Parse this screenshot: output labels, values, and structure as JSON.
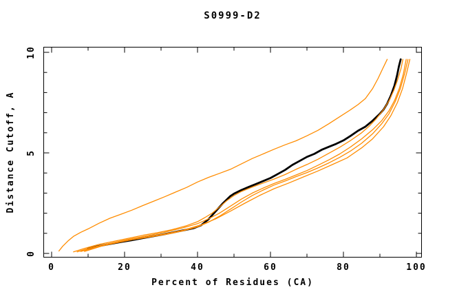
{
  "title": "S0999-D2",
  "chart_data": {
    "type": "line",
    "title": "S0999-D2",
    "xlabel": "Percent of Residues (CA)",
    "ylabel": "Distance Cutoff, A",
    "xlim": [
      0,
      100
    ],
    "ylim": [
      0,
      10
    ],
    "x_major_ticks": [
      0,
      20,
      40,
      60,
      80,
      100
    ],
    "x_minor_step": 10,
    "y_major_ticks": [
      0,
      5,
      10
    ],
    "y_minor_step": 1,
    "grid": false,
    "legend_position": "none",
    "colors": {
      "model_line": "#000000",
      "reference_lines": "#ff8c00",
      "background": "#ffffff"
    },
    "series": [
      {
        "name": "black-model",
        "color": "#000000",
        "width": 2.8,
        "points": [
          [
            10,
            0.25
          ],
          [
            13,
            0.37
          ],
          [
            16,
            0.47
          ],
          [
            19,
            0.57
          ],
          [
            22,
            0.66
          ],
          [
            25,
            0.76
          ],
          [
            28,
            0.86
          ],
          [
            31,
            0.96
          ],
          [
            34,
            1.07
          ],
          [
            37,
            1.18
          ],
          [
            39,
            1.26
          ],
          [
            41,
            1.4
          ],
          [
            43,
            1.7
          ],
          [
            45,
            2.1
          ],
          [
            47,
            2.5
          ],
          [
            49,
            2.85
          ],
          [
            50,
            2.97
          ],
          [
            52,
            3.15
          ],
          [
            54,
            3.3
          ],
          [
            56,
            3.45
          ],
          [
            58,
            3.6
          ],
          [
            60,
            3.75
          ],
          [
            62,
            3.95
          ],
          [
            64,
            4.15
          ],
          [
            66,
            4.4
          ],
          [
            68,
            4.6
          ],
          [
            70,
            4.8
          ],
          [
            72,
            4.95
          ],
          [
            74,
            5.15
          ],
          [
            76,
            5.3
          ],
          [
            78,
            5.45
          ],
          [
            80,
            5.62
          ],
          [
            82,
            5.85
          ],
          [
            84,
            6.1
          ],
          [
            86,
            6.3
          ],
          [
            88,
            6.6
          ],
          [
            90,
            6.95
          ],
          [
            91,
            7.15
          ],
          [
            92,
            7.45
          ],
          [
            93,
            7.85
          ],
          [
            94,
            8.35
          ],
          [
            94.7,
            8.85
          ],
          [
            95.2,
            9.3
          ],
          [
            95.7,
            9.65
          ]
        ]
      },
      {
        "name": "orange-outlier",
        "color": "#ff8c00",
        "width": 1.3,
        "points": [
          [
            2,
            0.12
          ],
          [
            3,
            0.35
          ],
          [
            4.5,
            0.62
          ],
          [
            6,
            0.85
          ],
          [
            8,
            1.05
          ],
          [
            10,
            1.22
          ],
          [
            13,
            1.5
          ],
          [
            16,
            1.75
          ],
          [
            19,
            1.95
          ],
          [
            22,
            2.15
          ],
          [
            25,
            2.38
          ],
          [
            28,
            2.6
          ],
          [
            31,
            2.82
          ],
          [
            34,
            3.05
          ],
          [
            37,
            3.28
          ],
          [
            40,
            3.55
          ],
          [
            43,
            3.78
          ],
          [
            46,
            3.98
          ],
          [
            49,
            4.18
          ],
          [
            52,
            4.45
          ],
          [
            55,
            4.72
          ],
          [
            58,
            4.95
          ],
          [
            61,
            5.18
          ],
          [
            64,
            5.4
          ],
          [
            67,
            5.6
          ],
          [
            70,
            5.85
          ],
          [
            73,
            6.12
          ],
          [
            76,
            6.45
          ],
          [
            79,
            6.8
          ],
          [
            82,
            7.15
          ],
          [
            84,
            7.4
          ],
          [
            86,
            7.7
          ],
          [
            88,
            8.2
          ],
          [
            89.5,
            8.7
          ],
          [
            90.8,
            9.2
          ],
          [
            92,
            9.65
          ]
        ]
      },
      {
        "name": "orange-2",
        "color": "#ff8c00",
        "width": 1.3,
        "points": [
          [
            6,
            0.08
          ],
          [
            9,
            0.25
          ],
          [
            13,
            0.45
          ],
          [
            17,
            0.6
          ],
          [
            21,
            0.75
          ],
          [
            25,
            0.9
          ],
          [
            29,
            1.03
          ],
          [
            33,
            1.18
          ],
          [
            37,
            1.38
          ],
          [
            40,
            1.58
          ],
          [
            42,
            1.78
          ],
          [
            44,
            2.0
          ],
          [
            46,
            2.3
          ],
          [
            48,
            2.62
          ],
          [
            50,
            2.88
          ],
          [
            52,
            3.08
          ],
          [
            55,
            3.3
          ],
          [
            58,
            3.5
          ],
          [
            61,
            3.7
          ],
          [
            64,
            3.92
          ],
          [
            67,
            4.18
          ],
          [
            70,
            4.42
          ],
          [
            73,
            4.68
          ],
          [
            76,
            4.98
          ],
          [
            79,
            5.28
          ],
          [
            82,
            5.62
          ],
          [
            85,
            6.0
          ],
          [
            87,
            6.32
          ],
          [
            89,
            6.7
          ],
          [
            91,
            7.15
          ],
          [
            92.5,
            7.6
          ],
          [
            93.8,
            8.1
          ],
          [
            94.8,
            8.6
          ],
          [
            95.8,
            9.2
          ],
          [
            96.3,
            9.65
          ]
        ]
      },
      {
        "name": "orange-3",
        "color": "#ff8c00",
        "width": 1.3,
        "points": [
          [
            7,
            0.08
          ],
          [
            11,
            0.3
          ],
          [
            16,
            0.5
          ],
          [
            21,
            0.7
          ],
          [
            26,
            0.87
          ],
          [
            31,
            1.05
          ],
          [
            36,
            1.27
          ],
          [
            40,
            1.48
          ],
          [
            43,
            1.72
          ],
          [
            46,
            2.0
          ],
          [
            49,
            2.35
          ],
          [
            52,
            2.7
          ],
          [
            55,
            3.0
          ],
          [
            58,
            3.25
          ],
          [
            61,
            3.48
          ],
          [
            64,
            3.68
          ],
          [
            67,
            3.9
          ],
          [
            70,
            4.12
          ],
          [
            73,
            4.38
          ],
          [
            76,
            4.65
          ],
          [
            79,
            4.95
          ],
          [
            82,
            5.3
          ],
          [
            85,
            5.7
          ],
          [
            88,
            6.15
          ],
          [
            90.5,
            6.6
          ],
          [
            92.5,
            7.1
          ],
          [
            94,
            7.6
          ],
          [
            95.3,
            8.2
          ],
          [
            96.4,
            8.9
          ],
          [
            97.2,
            9.65
          ]
        ]
      },
      {
        "name": "orange-4",
        "color": "#ff8c00",
        "width": 1.3,
        "points": [
          [
            8,
            0.1
          ],
          [
            12,
            0.3
          ],
          [
            17,
            0.5
          ],
          [
            22,
            0.68
          ],
          [
            27,
            0.82
          ],
          [
            32,
            0.97
          ],
          [
            36,
            1.12
          ],
          [
            40,
            1.32
          ],
          [
            43,
            1.55
          ],
          [
            46,
            1.85
          ],
          [
            49,
            2.2
          ],
          [
            52,
            2.55
          ],
          [
            55,
            2.88
          ],
          [
            58,
            3.15
          ],
          [
            61,
            3.4
          ],
          [
            64,
            3.6
          ],
          [
            67,
            3.82
          ],
          [
            70,
            4.02
          ],
          [
            73,
            4.25
          ],
          [
            76,
            4.5
          ],
          [
            79,
            4.78
          ],
          [
            82,
            5.1
          ],
          [
            85,
            5.48
          ],
          [
            88,
            5.95
          ],
          [
            90.5,
            6.45
          ],
          [
            92.5,
            6.95
          ],
          [
            94.2,
            7.55
          ],
          [
            95.6,
            8.2
          ],
          [
            96.8,
            8.95
          ],
          [
            97.7,
            9.65
          ]
        ]
      },
      {
        "name": "orange-5",
        "color": "#ff8c00",
        "width": 1.3,
        "points": [
          [
            9,
            0.1
          ],
          [
            14,
            0.38
          ],
          [
            20,
            0.62
          ],
          [
            26,
            0.82
          ],
          [
            31,
            0.97
          ],
          [
            36,
            1.15
          ],
          [
            41,
            1.42
          ],
          [
            45,
            1.72
          ],
          [
            49,
            2.1
          ],
          [
            53,
            2.5
          ],
          [
            57,
            2.88
          ],
          [
            61,
            3.22
          ],
          [
            65,
            3.5
          ],
          [
            69,
            3.8
          ],
          [
            73,
            4.1
          ],
          [
            77,
            4.42
          ],
          [
            81,
            4.75
          ],
          [
            85,
            5.25
          ],
          [
            88,
            5.7
          ],
          [
            91,
            6.3
          ],
          [
            93,
            6.85
          ],
          [
            94.8,
            7.5
          ],
          [
            96.2,
            8.2
          ],
          [
            97.3,
            8.95
          ],
          [
            98.2,
            9.65
          ]
        ]
      }
    ]
  }
}
